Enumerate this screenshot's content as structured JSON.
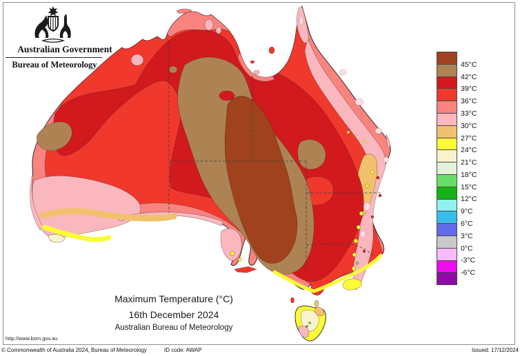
{
  "header": {
    "government_title": "Australian Government",
    "agency_title": "Bureau of Meteorology",
    "crest_icon": "australian-coat-of-arms"
  },
  "title_block": {
    "line1": "Maximum Temperature (°C)",
    "line2": "16th December 2024",
    "line3": "Australian Bureau of Meteorology"
  },
  "footer": {
    "url": "http://www.bom.gov.au",
    "copyright": "© Commonwealth of Australia 2024, Bureau of Meteorology",
    "id_code": "ID code: AWAP",
    "issued": "Issued: 17/12/2024"
  },
  "legend": {
    "labels": [
      "45°C",
      "42°C",
      "39°C",
      "36°C",
      "33°C",
      "30°C",
      "27°C",
      "24°C",
      "21°C",
      "18°C",
      "15°C",
      "12°C",
      "9°C",
      "6°C",
      "3°C",
      "0°C",
      "-3°C",
      "-6°C"
    ]
  },
  "map": {
    "region": "Australia",
    "depicts": "Maximum temperature analysis (colour-filled contours)",
    "levels": [
      {
        "id": "t45",
        "range": "above 45",
        "color": "#A0421D"
      },
      {
        "id": "t42",
        "range": "42-45",
        "color": "#AE8354"
      },
      {
        "id": "t39",
        "range": "39-42",
        "color": "#D2191D"
      },
      {
        "id": "t36",
        "range": "36-39",
        "color": "#F0382D"
      },
      {
        "id": "t33",
        "range": "33-36",
        "color": "#F8837F"
      },
      {
        "id": "t30",
        "range": "30-33",
        "color": "#FBB7BE"
      },
      {
        "id": "t27",
        "range": "27-30",
        "color": "#F1C16E"
      },
      {
        "id": "t24",
        "range": "24-27",
        "color": "#FBFB36"
      },
      {
        "id": "t21",
        "range": "21-24",
        "color": "#F9F3CD"
      },
      {
        "id": "t18",
        "range": "18-21",
        "color": "#E3F3DA"
      },
      {
        "id": "t15",
        "range": "15-18",
        "color": "#67DE67"
      },
      {
        "id": "t12",
        "range": "12-15",
        "color": "#16B216"
      },
      {
        "id": "t9",
        "range": "9-12",
        "color": "#90F2F0"
      },
      {
        "id": "t6",
        "range": "6-9",
        "color": "#38BEEC"
      },
      {
        "id": "t3",
        "range": "3-6",
        "color": "#5F6BE8"
      },
      {
        "id": "t0",
        "range": "0-3",
        "color": "#C9C9C9"
      },
      {
        "id": "tm3",
        "range": "-3-0",
        "color": "#F9BAF9"
      },
      {
        "id": "tm6",
        "range": "-6--3",
        "color": "#EE0CEE"
      },
      {
        "id": "tm9",
        "range": "below -6",
        "color": "#8F0AA8"
      }
    ]
  }
}
